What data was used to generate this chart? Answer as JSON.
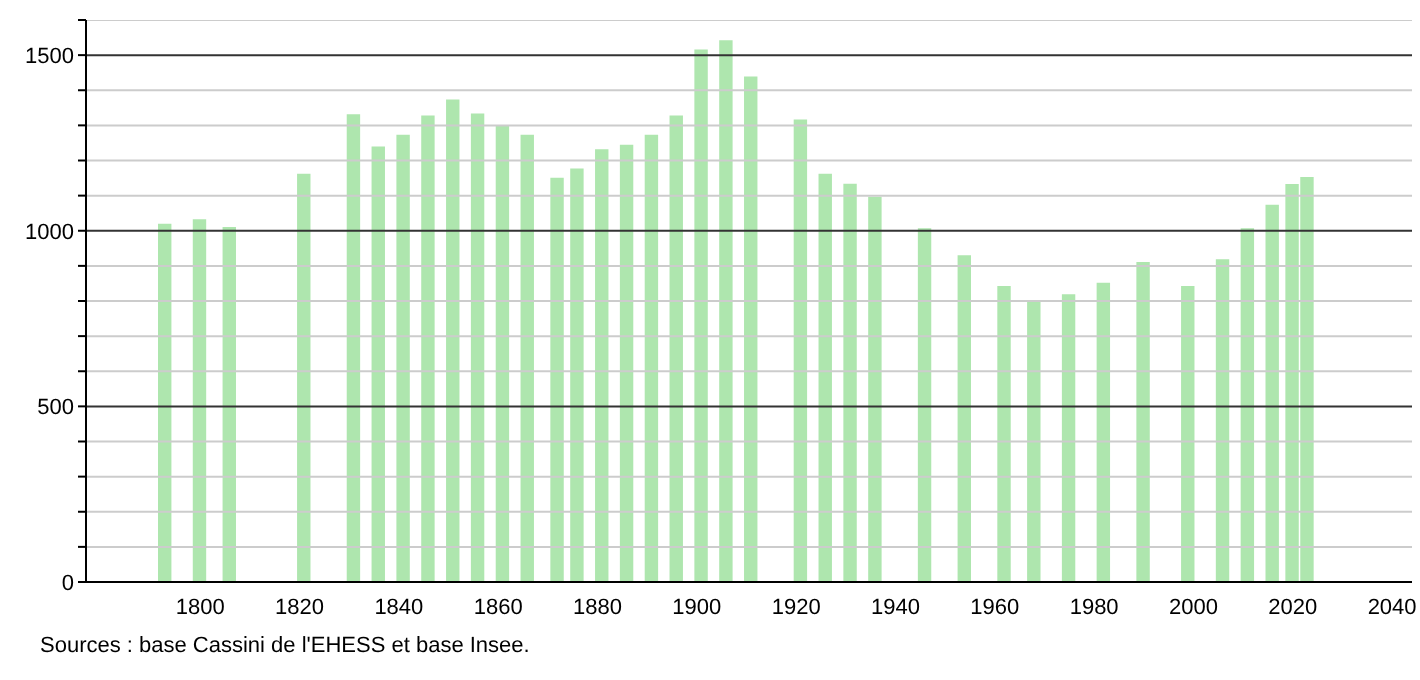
{
  "chart_data": {
    "type": "bar",
    "x": [
      1793,
      1800,
      1806,
      1821,
      1831,
      1836,
      1841,
      1846,
      1851,
      1856,
      1861,
      1866,
      1872,
      1876,
      1881,
      1886,
      1891,
      1896,
      1901,
      1906,
      1911,
      1921,
      1926,
      1931,
      1936,
      1946,
      1954,
      1962,
      1968,
      1975,
      1982,
      1990,
      1999,
      2006,
      2011,
      2016,
      2020,
      2023
    ],
    "values": [
      1020,
      1033,
      1011,
      1162,
      1332,
      1240,
      1273,
      1328,
      1374,
      1334,
      1299,
      1273,
      1151,
      1177,
      1232,
      1245,
      1273,
      1328,
      1516,
      1542,
      1439,
      1317,
      1162,
      1134,
      1097,
      1007,
      930,
      843,
      801,
      819,
      852,
      911,
      843,
      919,
      1007,
      1074,
      1133,
      1153
    ],
    "color": "#aee6ae",
    "xlim": [
      1777,
      2044
    ],
    "xticks": [
      1800,
      1820,
      1840,
      1860,
      1880,
      1900,
      1920,
      1940,
      1960,
      1980,
      2000,
      2020,
      2040
    ],
    "ylim": [
      0,
      1600
    ],
    "yticks": [
      0,
      {
        "value": 100,
        "label": null
      },
      {
        "value": 200,
        "label": null
      },
      {
        "value": 300,
        "label": null
      },
      {
        "value": 400,
        "label": null
      },
      500,
      {
        "value": 600,
        "label": null
      },
      {
        "value": 700,
        "label": null
      },
      {
        "value": 800,
        "label": null
      },
      {
        "value": 900,
        "label": null
      },
      1000,
      {
        "value": 1100,
        "label": null
      },
      {
        "value": 1200,
        "label": null
      },
      {
        "value": 1300,
        "label": null
      },
      {
        "value": 1400,
        "label": null
      },
      1500,
      {
        "value": 1600,
        "label": null
      }
    ],
    "grid": "y",
    "annotations": [
      "Sources : base Cassini de l'EHESS et base Insee."
    ]
  }
}
